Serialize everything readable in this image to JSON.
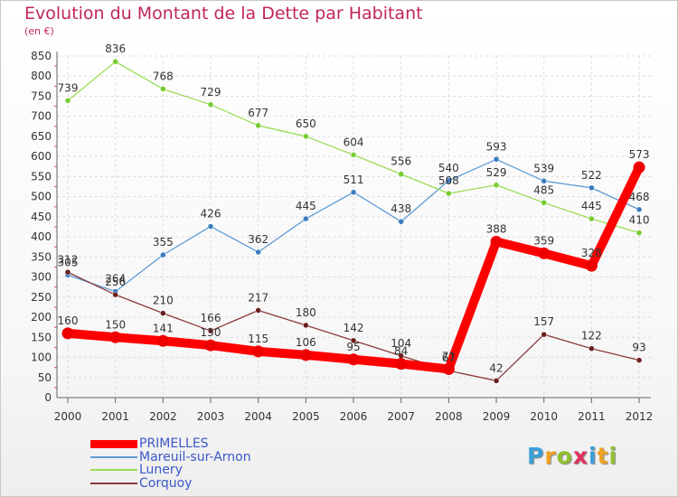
{
  "title": "Evolution du Montant de la Dette par Habitant",
  "subtitle": "(en €)",
  "logo": {
    "text": "Proxiti",
    "letters": [
      {
        "ch": "P",
        "color": "#3aa0d8"
      },
      {
        "ch": "r",
        "color": "#f0a020"
      },
      {
        "ch": "o",
        "color": "#90c030"
      },
      {
        "ch": "x",
        "color": "#e03060"
      },
      {
        "ch": "i",
        "color": "#3aa0d8"
      },
      {
        "ch": "t",
        "color": "#f0a020"
      },
      {
        "ch": "i",
        "color": "#90c030"
      }
    ]
  },
  "chart_data": {
    "type": "line",
    "title": "Evolution du Montant de la Dette par Habitant",
    "subtitle": "(en €)",
    "x": [
      "2000",
      "2001",
      "2002",
      "2003",
      "2004",
      "2005",
      "2006",
      "2007",
      "2008",
      "2009",
      "2010",
      "2011",
      "2012"
    ],
    "ylim": [
      0,
      850
    ],
    "yticks": [
      0,
      50,
      100,
      150,
      200,
      250,
      300,
      350,
      400,
      450,
      500,
      550,
      600,
      650,
      700,
      750,
      800,
      850
    ],
    "grid": true,
    "legend_position": "bottom-left",
    "series": [
      {
        "name": "PRIMELLES",
        "color": "#ff0000",
        "marker": "#ee0000",
        "values": [
          160,
          150,
          141,
          130,
          115,
          106,
          95,
          84,
          71,
          388,
          359,
          328,
          573
        ],
        "labels": [
          "160",
          "150",
          "141",
          "130",
          "115",
          "106",
          "95",
          "84",
          "71",
          "388",
          "359",
          "328",
          "573"
        ]
      },
      {
        "name": "Mareuil-sur-Arnon",
        "color": "#5b9bd5",
        "marker": "#3a7cc0",
        "values": [
          305,
          264,
          355,
          426,
          362,
          445,
          511,
          438,
          540,
          593,
          539,
          522,
          468
        ],
        "labels": [
          "305",
          "264",
          "355",
          "426",
          "362",
          "445",
          "511",
          "438",
          "540",
          "593",
          "539",
          "522",
          "468"
        ]
      },
      {
        "name": "Lunery",
        "color": "#99dd55",
        "marker": "#77cc33",
        "values": [
          739,
          836,
          768,
          729,
          677,
          650,
          604,
          556,
          508,
          529,
          485,
          445,
          410
        ],
        "labels": [
          "739",
          "836",
          "768",
          "729",
          "677",
          "650",
          "604",
          "556",
          "508",
          "529",
          "485",
          "445",
          "410"
        ]
      },
      {
        "name": "Corquoy",
        "color": "#8b3a3a",
        "marker": "#6b1f1f",
        "values": [
          312,
          256,
          210,
          166,
          217,
          180,
          142,
          104,
          67,
          42,
          157,
          122,
          93
        ],
        "labels": [
          "312",
          "256",
          "210",
          "166",
          "217",
          "180",
          "142",
          "104",
          "67",
          "42",
          "157",
          "122",
          "93"
        ]
      }
    ]
  }
}
